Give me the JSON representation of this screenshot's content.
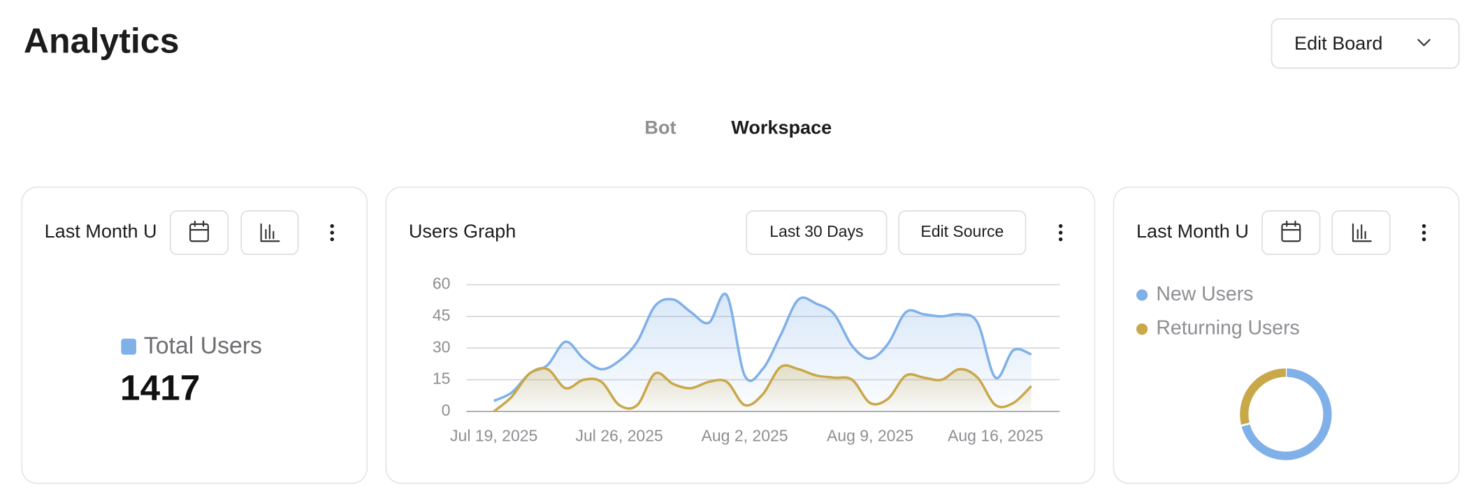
{
  "header": {
    "title": "Analytics",
    "button": "Edit Board"
  },
  "tabs": [
    "Bot",
    "Workspace"
  ],
  "chart_data": [
    {
      "type": "stat",
      "title": "Last Month U",
      "label": "Total Users",
      "value": 1417,
      "color": "#7fb0e8"
    },
    {
      "type": "line",
      "title": "Users Graph",
      "controls": [
        "Last 30 Days",
        "Edit Source"
      ],
      "categories": [
        "Jul 19, 2025",
        null,
        null,
        null,
        null,
        null,
        null,
        "Jul 26, 2025",
        null,
        null,
        null,
        null,
        null,
        null,
        "Aug 2, 2025",
        null,
        null,
        null,
        null,
        null,
        null,
        "Aug 9, 2025",
        null,
        null,
        null,
        null,
        null,
        null,
        "Aug 16, 2025",
        null,
        null
      ],
      "series": [
        {
          "name": "New Users",
          "color": "#7fb0e8",
          "values": [
            5,
            9,
            18,
            22,
            33,
            25,
            20,
            24,
            33,
            50,
            53,
            47,
            42,
            55,
            17,
            20,
            36,
            53,
            51,
            46,
            31,
            25,
            32,
            47,
            46,
            45,
            46,
            42,
            16,
            29,
            27
          ]
        },
        {
          "name": "Returning Users",
          "color": "#c9a84a",
          "values": [
            0,
            7,
            18,
            20,
            11,
            15,
            14,
            3,
            3,
            18,
            13,
            11,
            14,
            14,
            3,
            8,
            21,
            20,
            17,
            16,
            15,
            4,
            6,
            17,
            16,
            15,
            20,
            16,
            3,
            4,
            12
          ]
        }
      ],
      "ylim": [
        0,
        60
      ],
      "yticks": [
        0,
        15,
        30,
        45,
        60
      ],
      "grid": true
    },
    {
      "type": "pie",
      "title": "Last Month U",
      "categories": [
        "New Users",
        "Returning Users"
      ],
      "values": [
        71,
        29
      ],
      "colors": [
        "#7fb0e8",
        "#c9a84a"
      ]
    }
  ]
}
